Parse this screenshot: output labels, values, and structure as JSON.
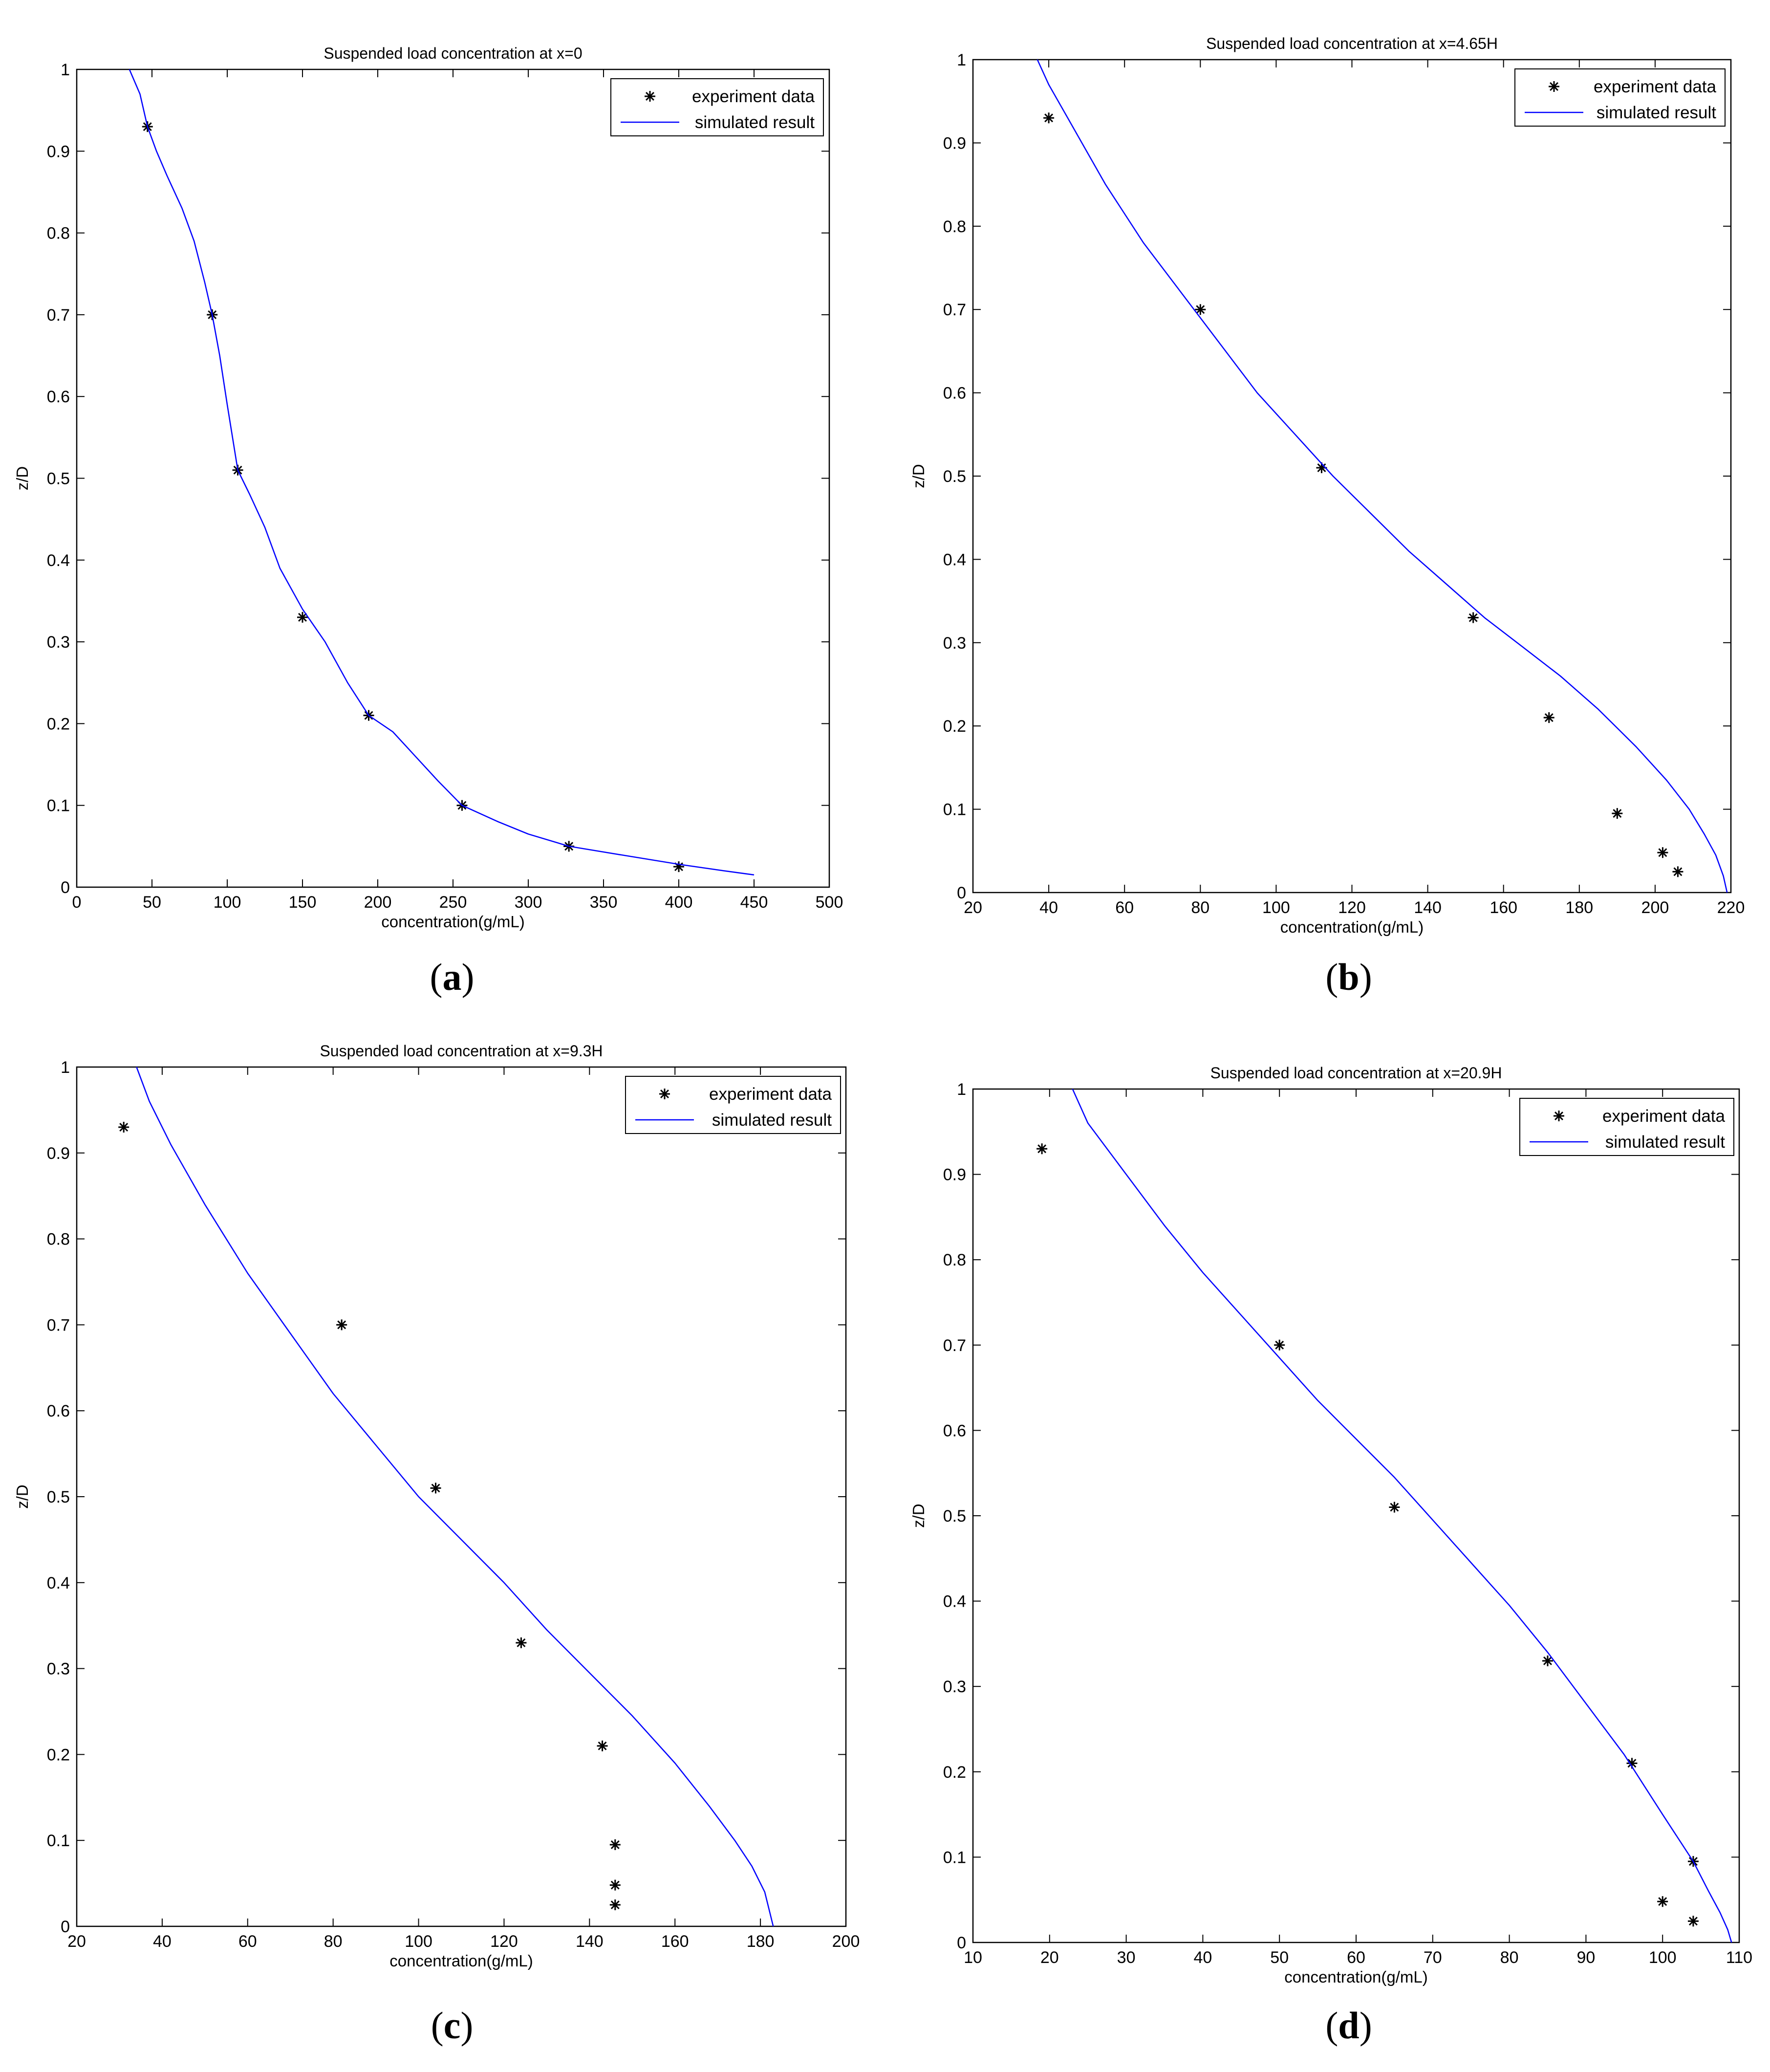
{
  "figure": {
    "panel_letters": [
      "a",
      "b",
      "c",
      "d"
    ]
  },
  "colors": {
    "simulated_line": "#0000ff",
    "experiment_marker": "#000000",
    "axes": "#000000",
    "background": "#ffffff"
  },
  "chart_data": [
    {
      "type": "scatter",
      "panel": "a",
      "title": "Suspended load concentration at x=0",
      "xlabel": "concentration(g/mL)",
      "ylabel": "z/D",
      "xlim": [
        0,
        500
      ],
      "ylim": [
        0,
        1
      ],
      "xticks": [
        0,
        50,
        100,
        150,
        200,
        250,
        300,
        350,
        400,
        450,
        500
      ],
      "yticks": [
        0,
        0.1,
        0.2,
        0.3,
        0.4,
        0.5,
        0.6,
        0.7,
        0.8,
        0.9,
        1
      ],
      "ytick_labels": [
        "0",
        "0.1",
        "0.2",
        "0.3",
        "0.4",
        "0.5",
        "0.6",
        "0.7",
        "0.8",
        "0.9",
        "1"
      ],
      "grid": false,
      "legend_position": "top-right",
      "series": [
        {
          "name": "experiment data",
          "style": "markers",
          "x": [
            47,
            90,
            107,
            150,
            194,
            256,
            327,
            400
          ],
          "y": [
            0.93,
            0.7,
            0.51,
            0.33,
            0.21,
            0.1,
            0.05,
            0.025
          ]
        },
        {
          "name": "simulated result",
          "style": "line",
          "x": [
            35,
            42,
            47,
            53,
            60,
            70,
            78,
            85,
            90,
            95,
            100,
            107,
            115,
            125,
            135,
            150,
            165,
            180,
            194,
            210,
            225,
            240,
            256,
            280,
            300,
            327,
            360,
            400,
            430,
            450
          ],
          "y": [
            1.0,
            0.97,
            0.93,
            0.9,
            0.87,
            0.83,
            0.79,
            0.74,
            0.7,
            0.65,
            0.59,
            0.51,
            0.48,
            0.44,
            0.39,
            0.34,
            0.3,
            0.25,
            0.21,
            0.19,
            0.16,
            0.13,
            0.1,
            0.08,
            0.065,
            0.05,
            0.04,
            0.028,
            0.02,
            0.015
          ]
        }
      ]
    },
    {
      "type": "scatter",
      "panel": "b",
      "title": "Suspended load concentration at x=4.65H",
      "xlabel": "concentration(g/mL)",
      "ylabel": "z/D",
      "xlim": [
        20,
        220
      ],
      "ylim": [
        0,
        1
      ],
      "xticks": [
        20,
        40,
        60,
        80,
        100,
        120,
        140,
        160,
        180,
        200,
        220
      ],
      "yticks": [
        0,
        0.1,
        0.2,
        0.3,
        0.4,
        0.5,
        0.6,
        0.7,
        0.8,
        0.9,
        1
      ],
      "ytick_labels": [
        "0",
        "0.1",
        "0.2",
        "0.3",
        "0.4",
        "0.5",
        "0.6",
        "0.7",
        "0.8",
        "0.9",
        "1"
      ],
      "grid": false,
      "legend_position": "top-right",
      "series": [
        {
          "name": "experiment data",
          "style": "markers",
          "x": [
            40,
            80,
            112,
            152,
            172,
            190,
            202,
            206
          ],
          "y": [
            0.93,
            0.7,
            0.51,
            0.33,
            0.21,
            0.095,
            0.048,
            0.025
          ]
        },
        {
          "name": "simulated result",
          "style": "line",
          "x": [
            37,
            40,
            45,
            55,
            65,
            75,
            85,
            95,
            105,
            115,
            125,
            135,
            145,
            155,
            165,
            175,
            185,
            195,
            203,
            209,
            213,
            216,
            218,
            219
          ],
          "y": [
            1.0,
            0.97,
            0.93,
            0.85,
            0.78,
            0.72,
            0.66,
            0.6,
            0.55,
            0.5,
            0.455,
            0.41,
            0.37,
            0.33,
            0.295,
            0.26,
            0.22,
            0.175,
            0.135,
            0.1,
            0.07,
            0.045,
            0.02,
            0.0
          ]
        }
      ]
    },
    {
      "type": "scatter",
      "panel": "c",
      "title": "Suspended load concentration at x=9.3H",
      "xlabel": "concentration(g/mL)",
      "ylabel": "z/D",
      "xlim": [
        20,
        200
      ],
      "ylim": [
        0,
        1
      ],
      "xticks": [
        20,
        40,
        60,
        80,
        100,
        120,
        140,
        160,
        180,
        200
      ],
      "yticks": [
        0,
        0.1,
        0.2,
        0.3,
        0.4,
        0.5,
        0.6,
        0.7,
        0.8,
        0.9,
        1
      ],
      "ytick_labels": [
        "0",
        "0.1",
        "0.2",
        "0.3",
        "0.4",
        "0.5",
        "0.6",
        "0.7",
        "0.8",
        "0.9",
        "1"
      ],
      "grid": false,
      "legend_position": "top-right",
      "series": [
        {
          "name": "experiment data",
          "style": "markers",
          "x": [
            31,
            82,
            104,
            124,
            143,
            146,
            146,
            146
          ],
          "y": [
            0.93,
            0.7,
            0.51,
            0.33,
            0.21,
            0.095,
            0.048,
            0.025
          ]
        },
        {
          "name": "simulated result",
          "style": "line",
          "x": [
            34,
            37,
            42,
            50,
            60,
            70,
            80,
            90,
            100,
            110,
            120,
            130,
            140,
            150,
            160,
            168,
            174,
            178,
            181,
            182,
            183
          ],
          "y": [
            1.0,
            0.96,
            0.91,
            0.84,
            0.76,
            0.69,
            0.62,
            0.56,
            0.5,
            0.45,
            0.4,
            0.345,
            0.295,
            0.245,
            0.19,
            0.14,
            0.1,
            0.07,
            0.04,
            0.02,
            0.0
          ]
        }
      ]
    },
    {
      "type": "scatter",
      "panel": "d",
      "title": "Suspended load concentration at x=20.9H",
      "xlabel": "concentration(g/mL)",
      "ylabel": "z/D",
      "xlim": [
        10,
        110
      ],
      "ylim": [
        0,
        1
      ],
      "xticks": [
        10,
        20,
        30,
        40,
        50,
        60,
        70,
        80,
        90,
        100,
        110
      ],
      "yticks": [
        0,
        0.1,
        0.2,
        0.3,
        0.4,
        0.5,
        0.6,
        0.7,
        0.8,
        0.9,
        1
      ],
      "ytick_labels": [
        "0",
        "0.1",
        "0.2",
        "0.3",
        "0.4",
        "0.5",
        "0.6",
        "0.7",
        "0.8",
        "0.9",
        "1"
      ],
      "grid": false,
      "legend_position": "top-right",
      "series": [
        {
          "name": "experiment data",
          "style": "markers",
          "x": [
            19,
            50,
            65,
            85,
            96,
            104,
            100,
            104
          ],
          "y": [
            0.93,
            0.7,
            0.51,
            0.33,
            0.21,
            0.095,
            0.048,
            0.025
          ]
        },
        {
          "name": "simulated result",
          "style": "line",
          "x": [
            23,
            25,
            30,
            35,
            40,
            45,
            50,
            55,
            60,
            65,
            70,
            75,
            80,
            85,
            90,
            95,
            100,
            104,
            106,
            107.5,
            108.5,
            109
          ],
          "y": [
            1.0,
            0.96,
            0.9,
            0.84,
            0.785,
            0.735,
            0.685,
            0.635,
            0.59,
            0.545,
            0.495,
            0.445,
            0.395,
            0.34,
            0.28,
            0.22,
            0.15,
            0.095,
            0.06,
            0.035,
            0.015,
            0.0
          ]
        }
      ]
    }
  ]
}
